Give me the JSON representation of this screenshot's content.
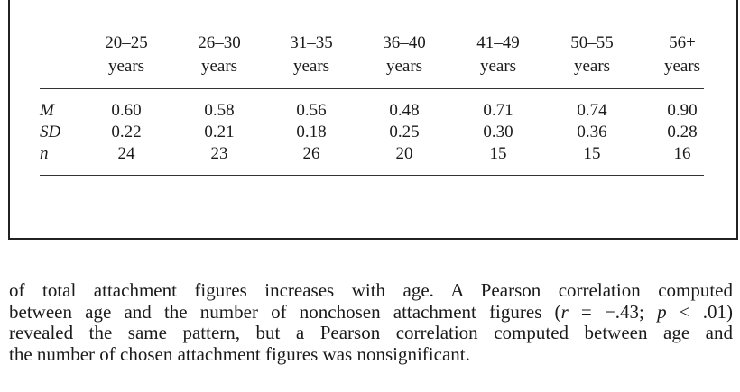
{
  "table": {
    "columns": [
      {
        "range": "20–25",
        "unit": "years"
      },
      {
        "range": "26–30",
        "unit": "years"
      },
      {
        "range": "31–35",
        "unit": "years"
      },
      {
        "range": "36–40",
        "unit": "years"
      },
      {
        "range": "41–49",
        "unit": "years"
      },
      {
        "range": "50–55",
        "unit": "years"
      },
      {
        "range": "56+",
        "unit": "years"
      }
    ],
    "rows": [
      {
        "label": "M",
        "values": [
          "0.60",
          "0.58",
          "0.56",
          "0.48",
          "0.71",
          "0.74",
          "0.90"
        ]
      },
      {
        "label": "SD",
        "values": [
          "0.22",
          "0.21",
          "0.18",
          "0.25",
          "0.30",
          "0.36",
          "0.28"
        ]
      },
      {
        "label": "n",
        "values": [
          "24",
          "23",
          "26",
          "20",
          "15",
          "15",
          "16"
        ]
      }
    ]
  },
  "body": {
    "line1": "of total attachment figures increases with age. A Pearson correlation computed",
    "line2_a": "between age and the number of nonchosen attachment figures (",
    "line2_r": "r",
    "line2_b": " = −.43; ",
    "line2_p": "p",
    "line2_c": " < .01)",
    "line3": "revealed the same pattern, but a Pearson correlation computed between age and",
    "line4": "the number of chosen attachment figures was nonsignificant."
  }
}
